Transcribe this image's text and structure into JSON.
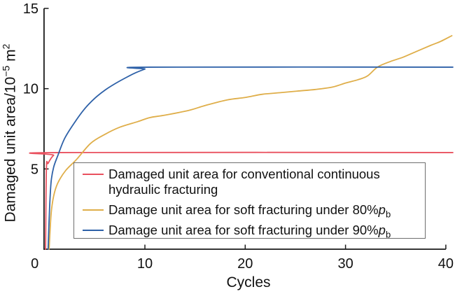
{
  "figure": {
    "x_axis_title": "Cycles",
    "y_axis_title": {
      "prefix": "Damaged unit area/10",
      "sup1": "−5",
      "mid": " m",
      "sup2": "2"
    },
    "legend": {
      "entry1": {
        "label": "Damaged unit area for conventional continuous hydraulic fracturing"
      },
      "entry2": {
        "prefix": "Damage unit area for soft fracturing under 80%",
        "p": "p",
        "sub": "b"
      },
      "entry3": {
        "prefix": "Damage unit area for soft fracturing under 90%",
        "p": "p",
        "sub": "b"
      }
    }
  },
  "colors": {
    "axis": "#1a1a1a",
    "text": "#111111",
    "legend_border": "#6e6e6e",
    "background": "#ffffff",
    "red_series": "#e9505e",
    "gold_series": "#dfae49",
    "blue_series": "#2e61a8"
  },
  "chart_data": {
    "type": "line",
    "title": "",
    "xlabel": "Cycles",
    "ylabel": "Damaged unit area/10^-5 m^2",
    "xlim": [
      0,
      40.8
    ],
    "ylim": [
      0,
      15
    ],
    "x_ticks": [
      0,
      10,
      20,
      30,
      40
    ],
    "y_ticks": [
      5,
      10,
      15
    ],
    "grid": false,
    "legend_position": "lower center",
    "series": [
      {
        "name": "Damaged unit area for conventional continuous hydraulic fracturing",
        "color": "#e9505e",
        "x": [
          0.1,
          0.18,
          0.35,
          0.9,
          1.6,
          40.7
        ],
        "y": [
          0,
          5.0,
          5.35,
          5.85,
          6.02,
          6.02
        ]
      },
      {
        "name": "Damage unit area for soft fracturing under 80%pb",
        "color": "#dfae49",
        "x": [
          0.45,
          0.65,
          0.9,
          1.3,
          2.1,
          3.2,
          4.6,
          6.0,
          7.5,
          9.3,
          10.5,
          12.0,
          14.4,
          16.0,
          18.2,
          20.0,
          21.7,
          23.5,
          25.2,
          27.0,
          28.7,
          30.0,
          31.2,
          32.2,
          33.2,
          34.5,
          35.7,
          37.0,
          38.5,
          39.5,
          40.6
        ],
        "y": [
          0,
          2.2,
          3.3,
          4.1,
          4.9,
          5.6,
          6.6,
          7.15,
          7.6,
          7.95,
          8.2,
          8.35,
          8.65,
          8.95,
          9.3,
          9.45,
          9.65,
          9.75,
          9.85,
          9.95,
          10.1,
          10.35,
          10.55,
          10.8,
          11.35,
          11.7,
          11.95,
          12.3,
          12.7,
          12.95,
          13.3
        ]
      },
      {
        "name": "Damage unit area for soft fracturing under 90%pb",
        "color": "#2e61a8",
        "x": [
          0.35,
          0.5,
          0.65,
          0.9,
          1.3,
          2.0,
          3.0,
          4.0,
          5.0,
          6.0,
          7.0,
          8.0,
          9.0,
          10.0,
          10.6,
          40.7
        ],
        "y": [
          0,
          2.6,
          4.2,
          5.1,
          5.8,
          6.9,
          7.9,
          8.75,
          9.4,
          9.9,
          10.3,
          10.65,
          10.97,
          11.22,
          11.34,
          11.34
        ]
      }
    ]
  }
}
